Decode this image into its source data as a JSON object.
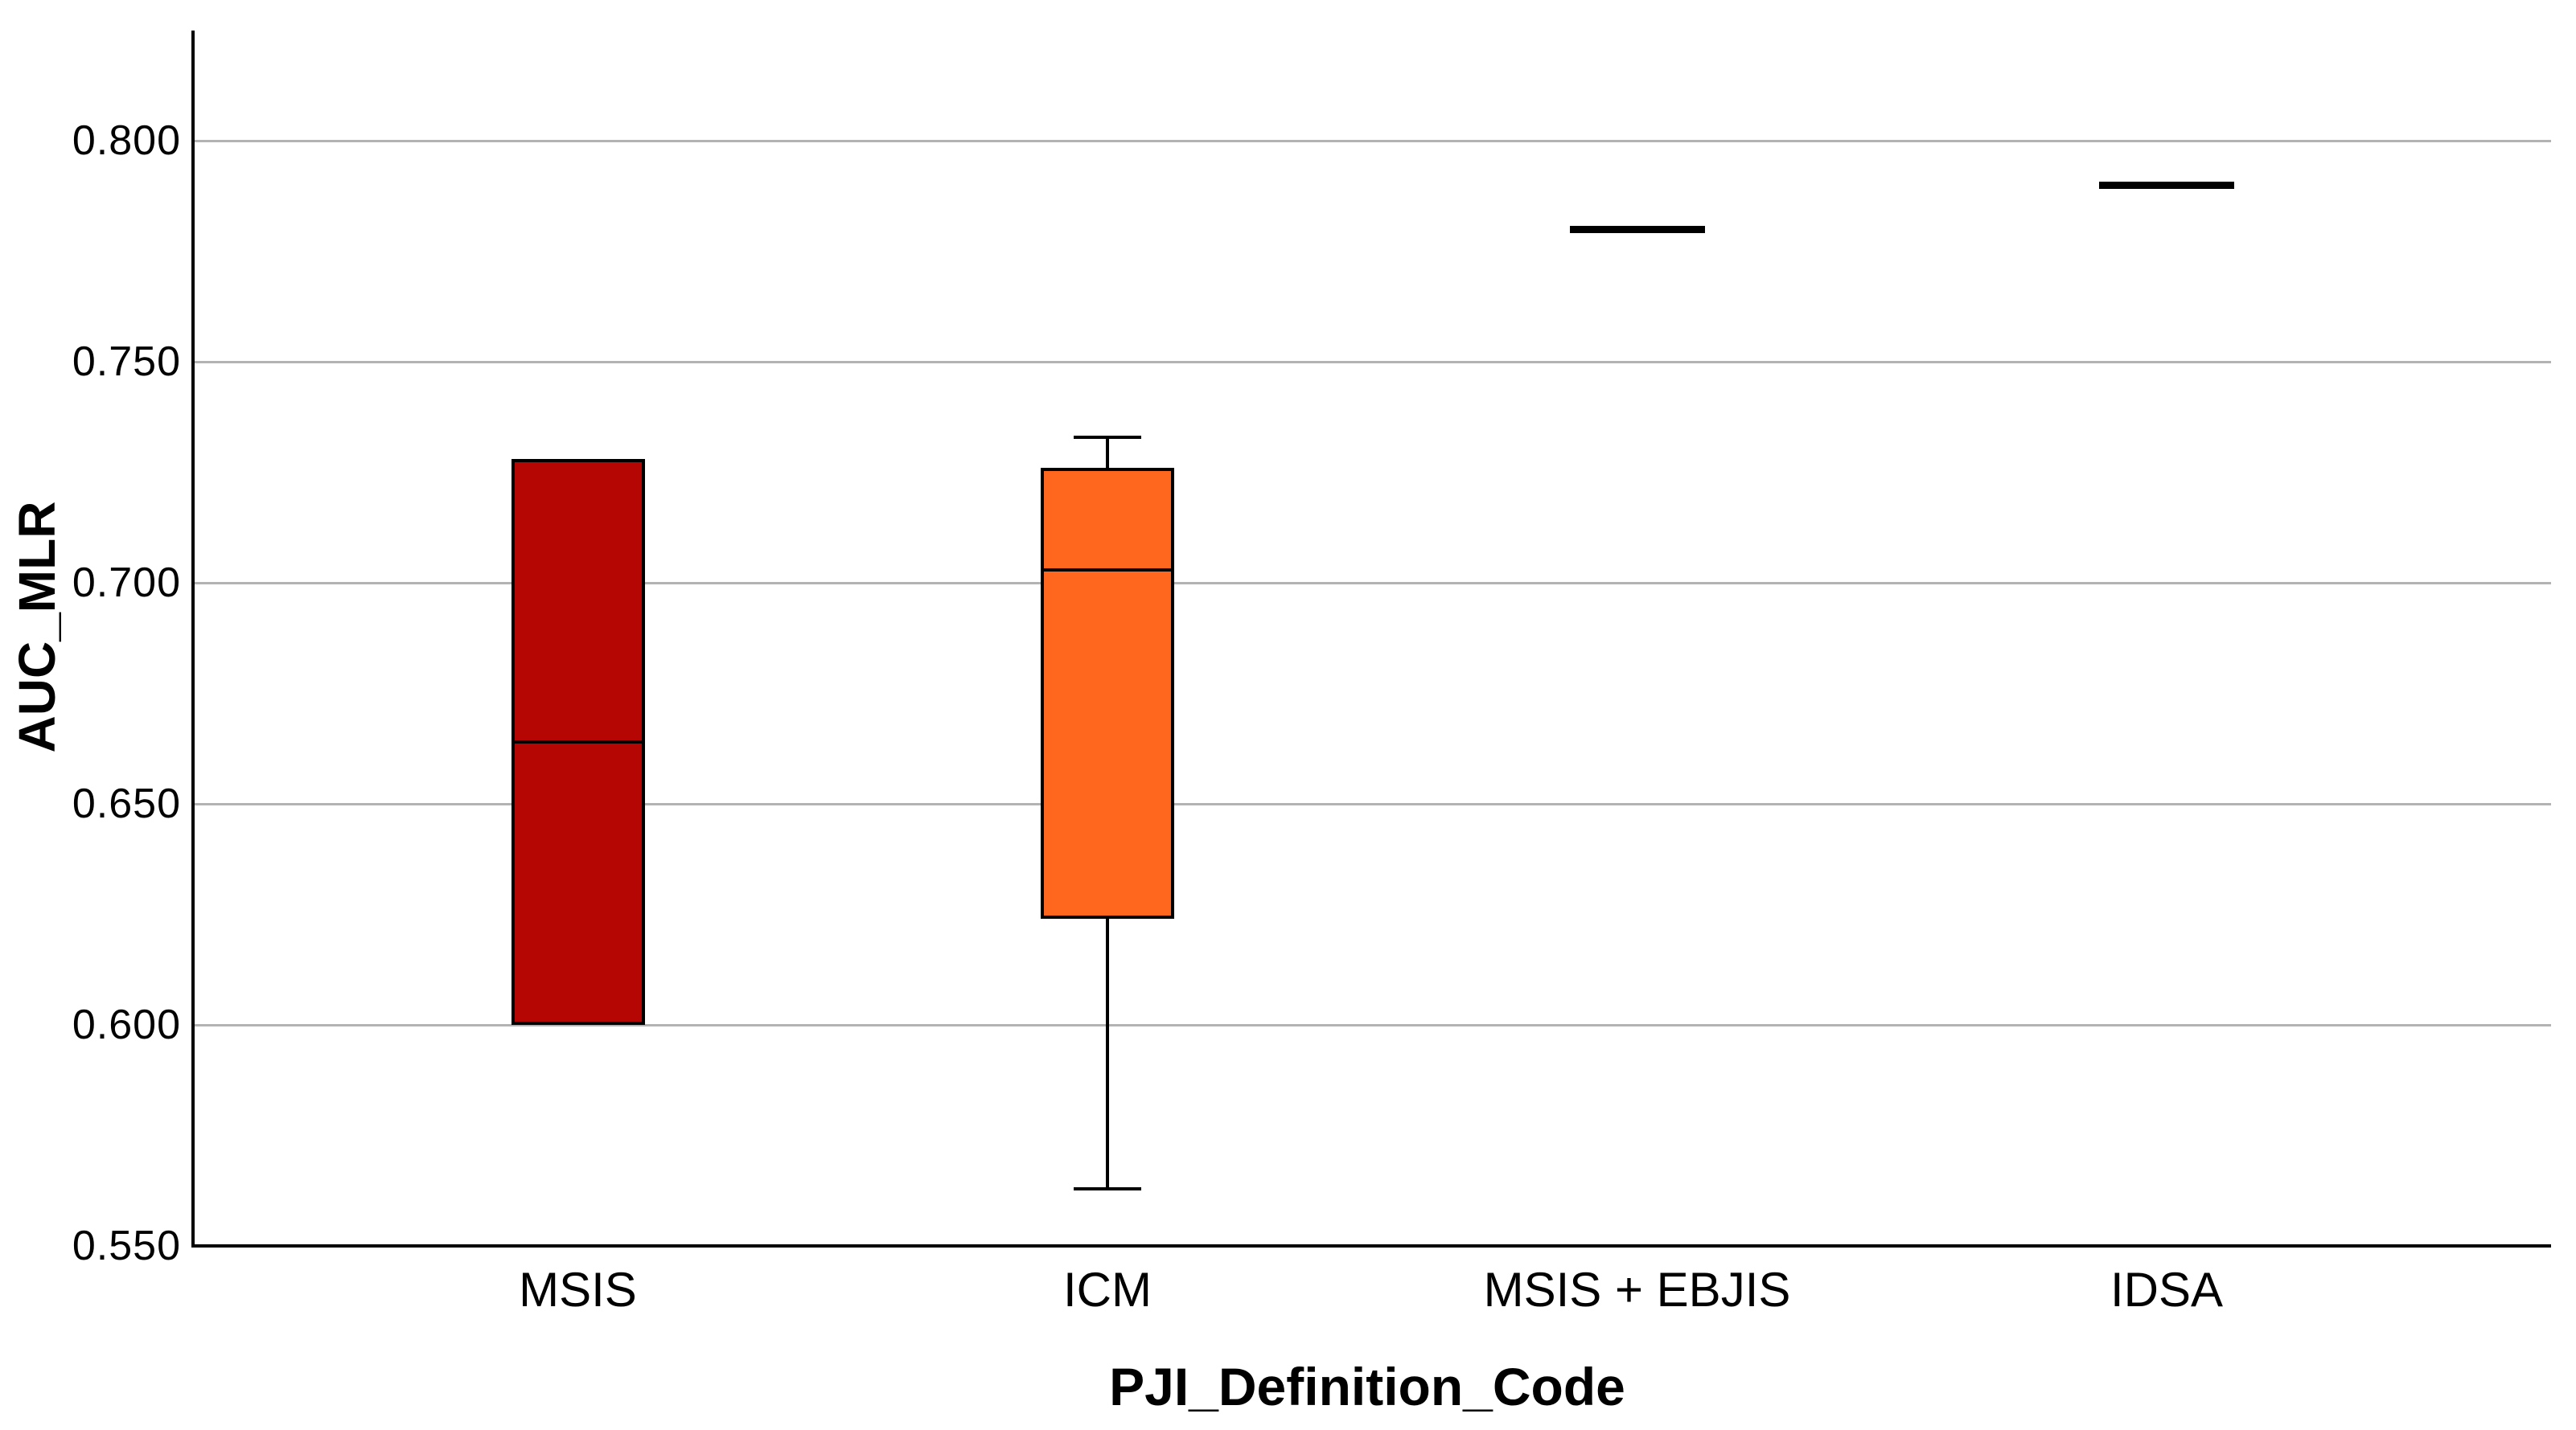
{
  "chart_data": {
    "type": "boxplot",
    "title": "",
    "xlabel": "PJI_Definition_Code",
    "ylabel": "AUC_MLR",
    "ylim": [
      0.55,
      0.825
    ],
    "yticks": [
      0.55,
      0.6,
      0.65,
      0.7,
      0.75,
      0.8
    ],
    "ytick_labels": [
      "0.550",
      "0.600",
      "0.650",
      "0.700",
      "0.750",
      "0.800"
    ],
    "grid": "horizontal-only",
    "legend": "none",
    "categories": [
      "MSIS",
      "ICM",
      "MSIS + EBJIS",
      "IDSA"
    ],
    "series": [
      {
        "category": "MSIS",
        "type": "box",
        "whisker_low": null,
        "q1": 0.6,
        "median": 0.664,
        "q3": 0.728,
        "whisker_high": null,
        "fill": "#b60604"
      },
      {
        "category": "ICM",
        "type": "box",
        "whisker_low": 0.563,
        "q1": 0.624,
        "median": 0.703,
        "q3": 0.726,
        "whisker_high": 0.733,
        "fill": "#ff661e"
      },
      {
        "category": "MSIS + EBJIS",
        "type": "median-line",
        "median": 0.78
      },
      {
        "category": "IDSA",
        "type": "median-line",
        "median": 0.79
      }
    ],
    "colors": {
      "msis_box": "#b60604",
      "icm_box": "#ff661e",
      "axis": "#000000",
      "gridline": "#b3b3b3",
      "text": "#000000"
    }
  }
}
